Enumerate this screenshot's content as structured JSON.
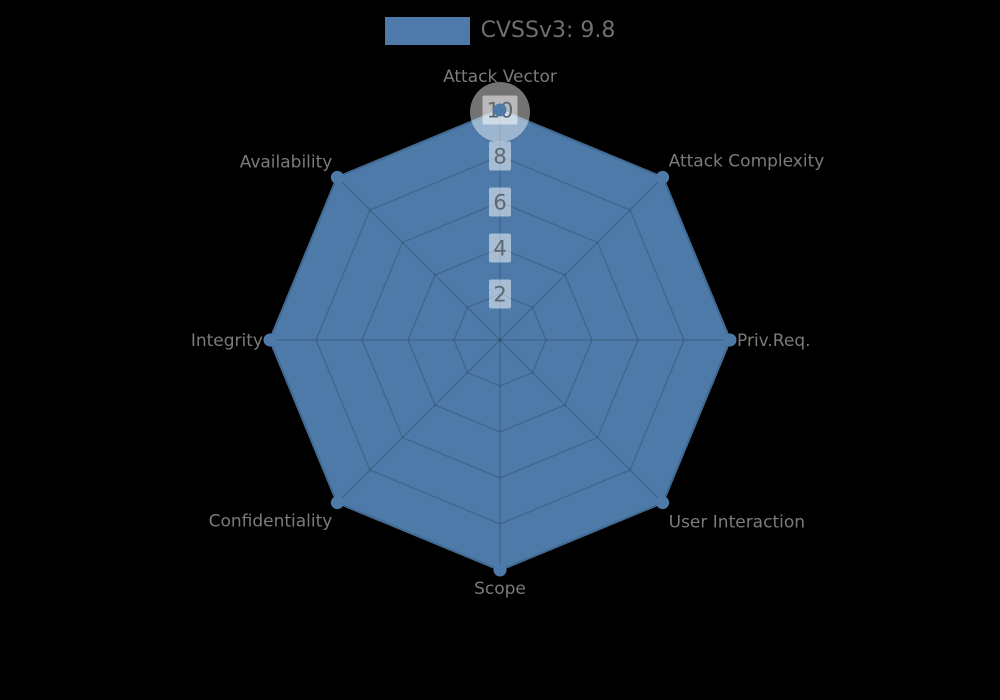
{
  "background_color": "#000000",
  "legend": {
    "label": "CVSSv3: 9.8",
    "swatch_color": "#4d7aa8",
    "position": "top-center"
  },
  "chart_data": {
    "type": "radar",
    "title": "",
    "categories": [
      "Attack Vector",
      "Attack Complexity",
      "Priv.Req.",
      "User Interaction",
      "Scope",
      "Confidentiality",
      "Integrity",
      "Availability"
    ],
    "series": [
      {
        "name": "CVSSv3: 9.8",
        "values": [
          10,
          10,
          10,
          10,
          10,
          10,
          10,
          10
        ]
      }
    ],
    "ticks": [
      2,
      4,
      6,
      8,
      10
    ],
    "axis_range": [
      0,
      10
    ],
    "grid_shape": "polygon",
    "grid_on": true,
    "start_axis": "top",
    "direction": "clockwise",
    "highlighted_point": "Attack Vector",
    "colors": {
      "fill": "#4d7aa8",
      "grid_line": "rgba(0,0,0,0.15)",
      "axis_label": "#7b7b7b",
      "tick_text": "#5d6771",
      "tick_backdrop": "rgba(255,255,255,0.5)",
      "highlight_halo": "rgba(255,255,255,0.45)"
    },
    "center": {
      "x": 500,
      "y": 340
    },
    "radius": 230
  }
}
